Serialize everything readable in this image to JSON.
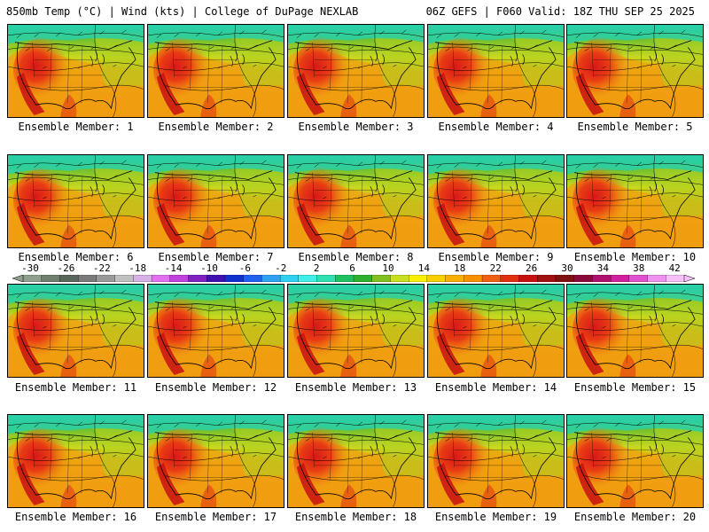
{
  "header": {
    "left": "850mb Temp (°C) | Wind (kts) | College of DuPage NEXLAB",
    "right": "06Z GEFS | F060 Valid: 18Z THU SEP 25 2025"
  },
  "panels": [
    {
      "label": "Ensemble Member: 1"
    },
    {
      "label": "Ensemble Member: 2"
    },
    {
      "label": "Ensemble Member: 3"
    },
    {
      "label": "Ensemble Member: 4"
    },
    {
      "label": "Ensemble Member: 5"
    },
    {
      "label": "Ensemble Member: 6"
    },
    {
      "label": "Ensemble Member: 7"
    },
    {
      "label": "Ensemble Member: 8"
    },
    {
      "label": "Ensemble Member: 9"
    },
    {
      "label": "Ensemble Member: 10"
    },
    {
      "label": "Ensemble Member: 11"
    },
    {
      "label": "Ensemble Member: 12"
    },
    {
      "label": "Ensemble Member: 13"
    },
    {
      "label": "Ensemble Member: 14"
    },
    {
      "label": "Ensemble Member: 15"
    },
    {
      "label": "Ensemble Member: 16"
    },
    {
      "label": "Ensemble Member: 17"
    },
    {
      "label": "Ensemble Member: 18"
    },
    {
      "label": "Ensemble Member: 19"
    },
    {
      "label": "Ensemble Member: 20"
    }
  ],
  "colorbar": {
    "tick_labels": [
      "-30",
      "-26",
      "-22",
      "-18",
      "-14",
      "-10",
      "-6",
      "-2",
      "2",
      "6",
      "10",
      "14",
      "18",
      "22",
      "26",
      "30",
      "34",
      "38",
      "42"
    ],
    "colors": [
      "#8fa08f",
      "#6f7f6f",
      "#5a665a",
      "#7a7a7a",
      "#9a9a9a",
      "#c0c0c0",
      "#d8b0e8",
      "#e070f0",
      "#c040e0",
      "#8020c0",
      "#4010b0",
      "#1030d0",
      "#2060f0",
      "#30a0f0",
      "#30d0f0",
      "#40f0e8",
      "#30e0b0",
      "#20c060",
      "#30b030",
      "#80c020",
      "#c8e020",
      "#f8f000",
      "#f8d000",
      "#f8b000",
      "#f89000",
      "#f06010",
      "#e03010",
      "#c81010",
      "#a01010",
      "#801010",
      "#8a0a3a",
      "#b01070",
      "#d020a0",
      "#e050d0",
      "#f090f0",
      "#f8c0f8"
    ]
  }
}
